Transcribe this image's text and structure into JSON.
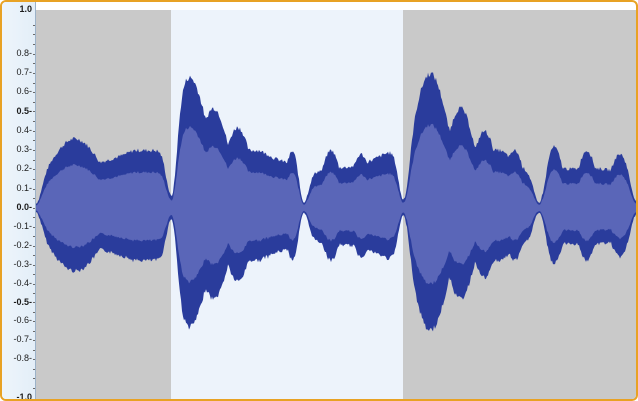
{
  "ruler": {
    "labels": [
      {
        "text": "1.0",
        "value": 1.0,
        "bold": true
      },
      {
        "text": "0.8-",
        "value": 0.8,
        "bold": false
      },
      {
        "text": "0.7-",
        "value": 0.7,
        "bold": false
      },
      {
        "text": "0.6-",
        "value": 0.6,
        "bold": false
      },
      {
        "text": "0.5-",
        "value": 0.5,
        "bold": true
      },
      {
        "text": "0.4-",
        "value": 0.4,
        "bold": false
      },
      {
        "text": "0.3-",
        "value": 0.3,
        "bold": false
      },
      {
        "text": "0.2-",
        "value": 0.2,
        "bold": false
      },
      {
        "text": "0.1-",
        "value": 0.1,
        "bold": false
      },
      {
        "text": "0.0-",
        "value": 0.0,
        "bold": true
      },
      {
        "text": "-0.1-",
        "value": -0.1,
        "bold": false
      },
      {
        "text": "-0.2-",
        "value": -0.2,
        "bold": false
      },
      {
        "text": "-0.3-",
        "value": -0.3,
        "bold": false
      },
      {
        "text": "-0.4-",
        "value": -0.4,
        "bold": false
      },
      {
        "text": "-0.5-",
        "value": -0.5,
        "bold": true
      },
      {
        "text": "-0.6-",
        "value": -0.6,
        "bold": false
      },
      {
        "text": "-0.7-",
        "value": -0.7,
        "bold": false
      },
      {
        "text": "-0.8-",
        "value": -0.8,
        "bold": false
      },
      {
        "text": "-1.0",
        "value": -1.0,
        "bold": true
      }
    ]
  },
  "track": {
    "selection": {
      "start": 0.225,
      "end": 0.61
    },
    "colors": {
      "frame": "#e8a224",
      "background": "#c9c9c9",
      "selection": "#edf3fb",
      "peak": "#2a3c9c",
      "rms": "#5a66b8"
    }
  }
}
